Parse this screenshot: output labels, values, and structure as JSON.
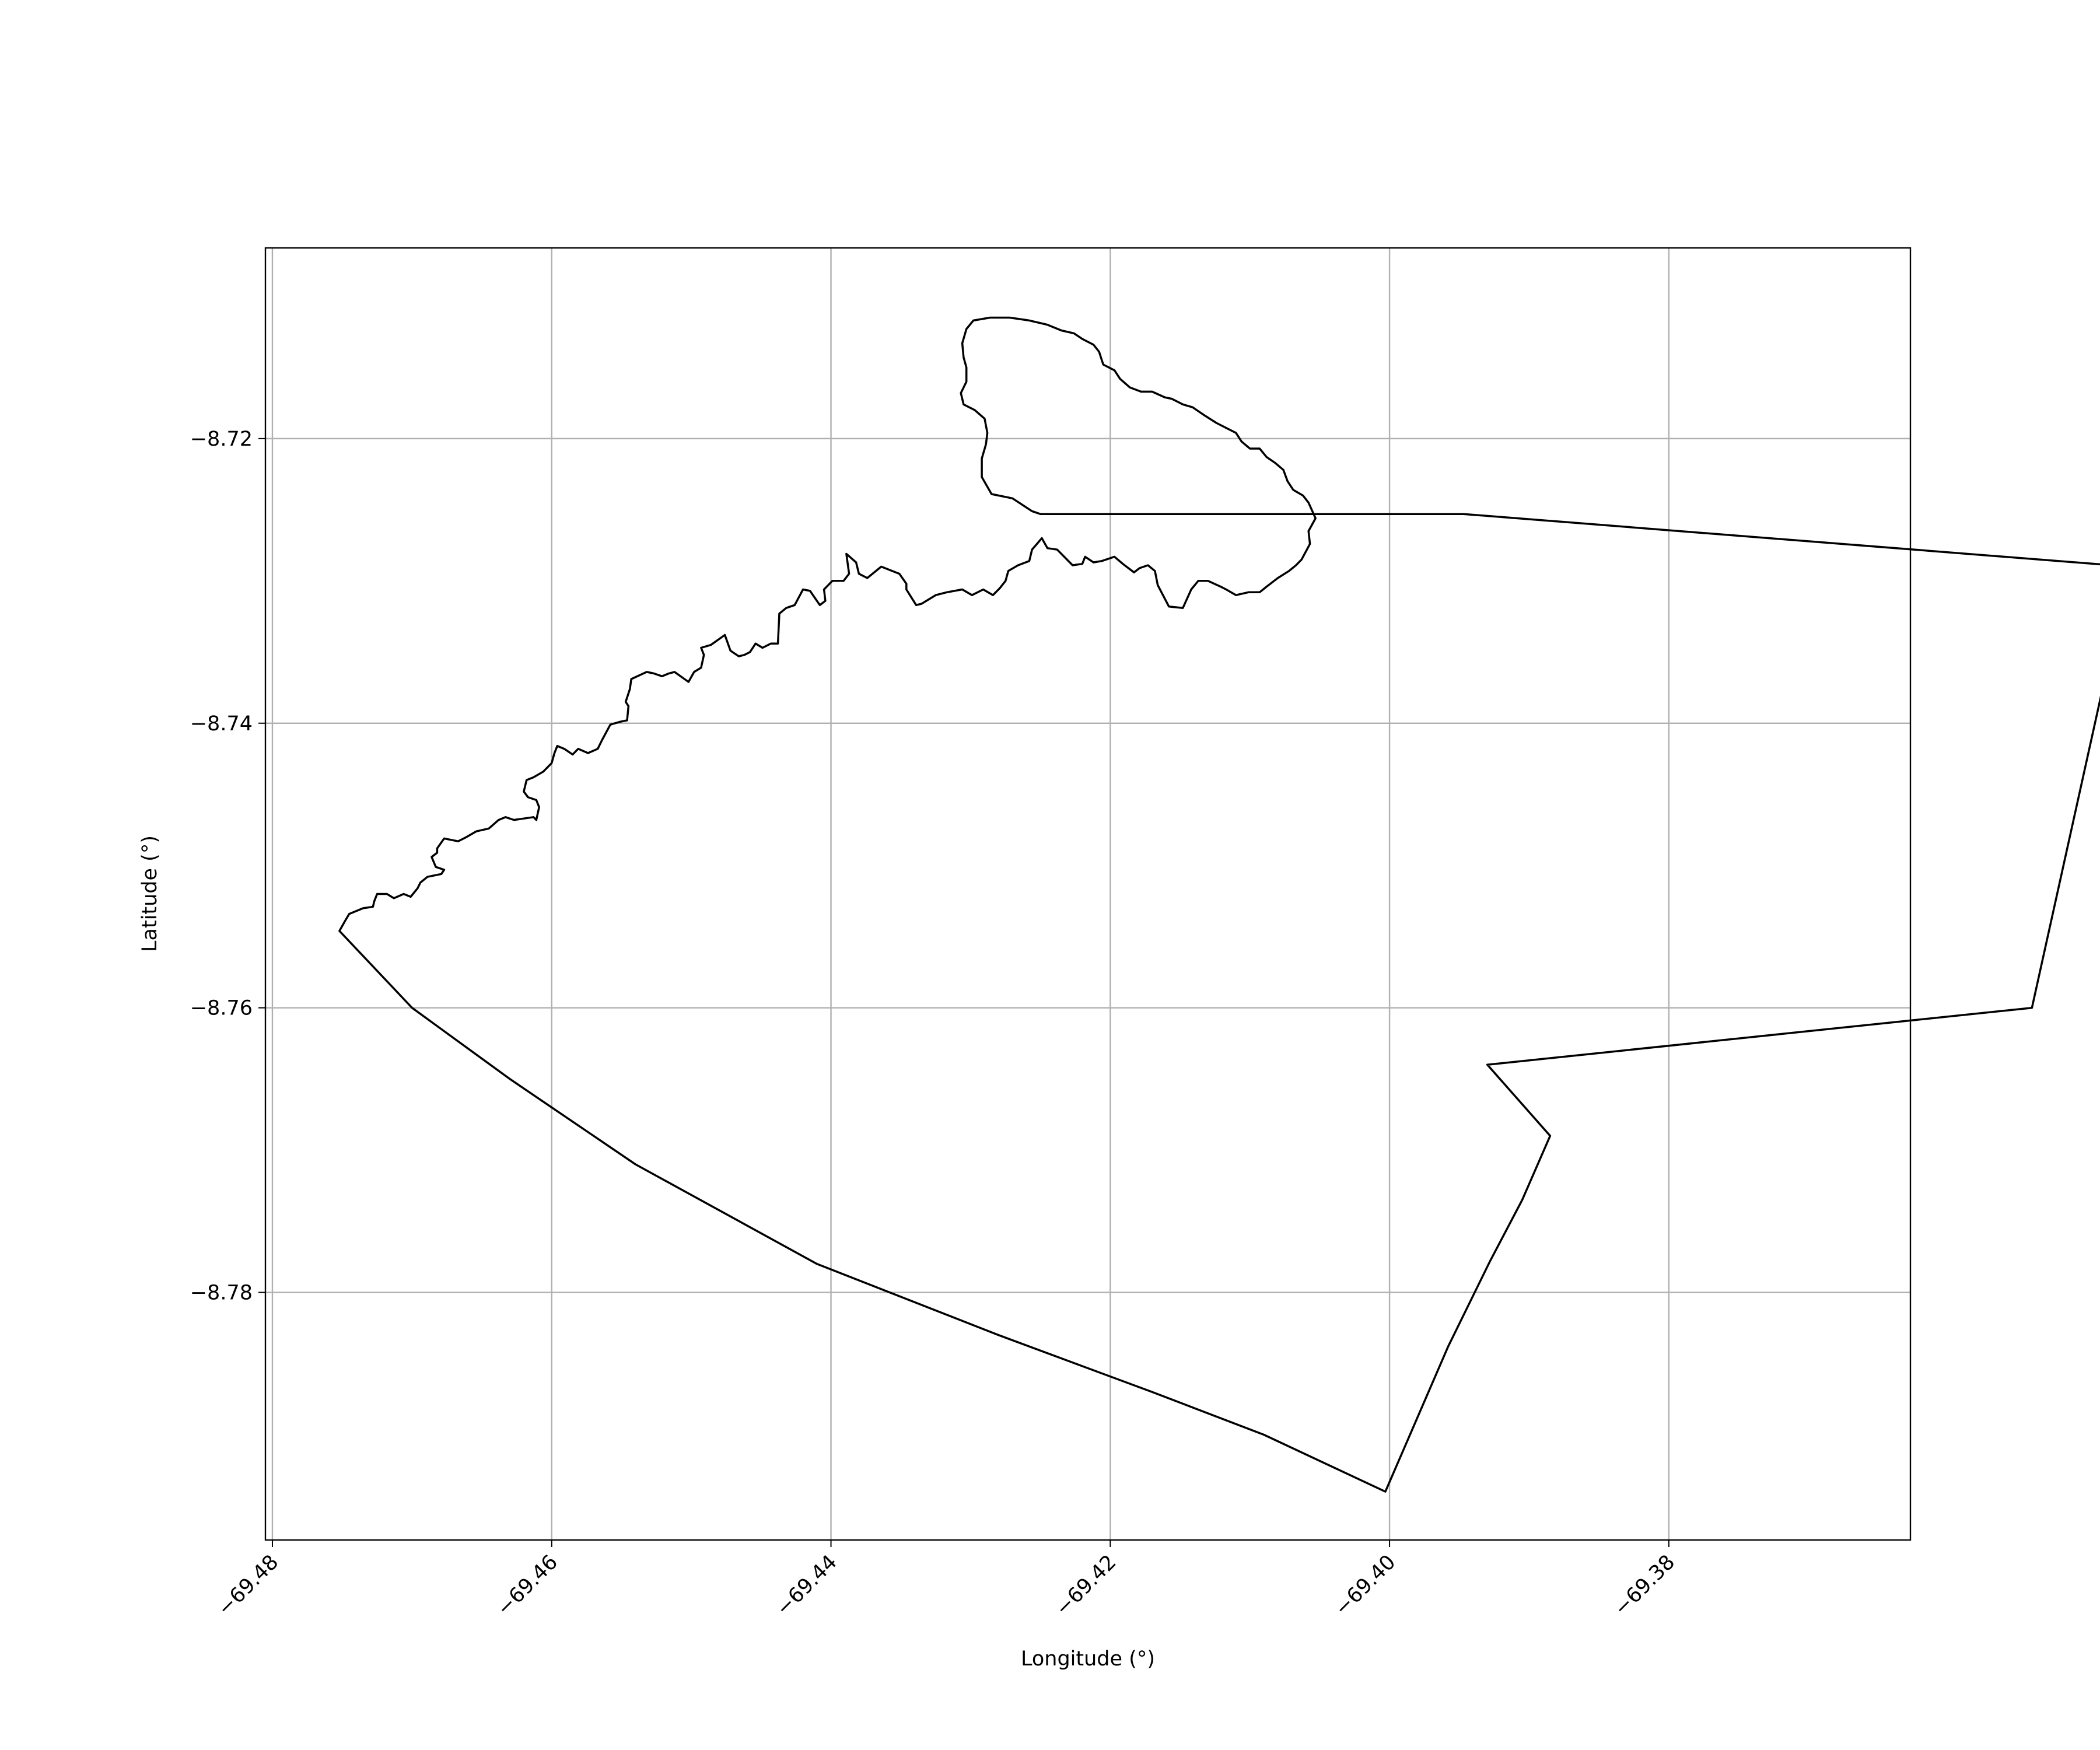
{
  "chart_data": {
    "type": "map",
    "xlabel": "Longitude (°)",
    "ylabel": "Latitude (°)",
    "xlim": [
      -69.4805,
      -69.3627
    ],
    "ylim": [
      -8.7974,
      -8.7066
    ],
    "xticks": [
      {
        "value": -69.48,
        "label": "−69.48"
      },
      {
        "value": -69.46,
        "label": "−69.46"
      },
      {
        "value": -69.44,
        "label": "−69.44"
      },
      {
        "value": -69.42,
        "label": "−69.42"
      },
      {
        "value": -69.4,
        "label": "−69.40"
      },
      {
        "value": -69.38,
        "label": "−69.38"
      }
    ],
    "yticks": [
      {
        "value": -8.72,
        "label": "−8.72"
      },
      {
        "value": -8.74,
        "label": "−8.74"
      },
      {
        "value": -8.76,
        "label": "−8.76"
      },
      {
        "value": -8.78,
        "label": "−8.78"
      }
    ],
    "grid": true,
    "series": [
      {
        "geometry": "polygon-outline",
        "color": "#000000",
        "points": [
          [
            -69.4752,
            -8.7546
          ],
          [
            -69.4748,
            -8.7539
          ],
          [
            -69.4745,
            -8.7534
          ],
          [
            -69.4735,
            -8.753
          ],
          [
            -69.4728,
            -8.7529
          ],
          [
            -69.4727,
            -8.7525
          ],
          [
            -69.4725,
            -8.752
          ],
          [
            -69.4718,
            -8.752
          ],
          [
            -69.4713,
            -8.7523
          ],
          [
            -69.4706,
            -8.752
          ],
          [
            -69.4701,
            -8.7522
          ],
          [
            -69.4696,
            -8.7516
          ],
          [
            -69.4694,
            -8.7512
          ],
          [
            -69.4689,
            -8.7508
          ],
          [
            -69.4679,
            -8.7506
          ],
          [
            -69.4677,
            -8.7503
          ],
          [
            -69.4683,
            -8.7501
          ],
          [
            -69.4686,
            -8.7494
          ],
          [
            -69.4682,
            -8.7491
          ],
          [
            -69.4682,
            -8.7488
          ],
          [
            -69.4677,
            -8.7481
          ],
          [
            -69.4672,
            -8.7482
          ],
          [
            -69.4667,
            -8.7483
          ],
          [
            -69.4661,
            -8.748
          ],
          [
            -69.4654,
            -8.7476
          ],
          [
            -69.4645,
            -8.7474
          ],
          [
            -69.4638,
            -8.7468
          ],
          [
            -69.4633,
            -8.7466
          ],
          [
            -69.4627,
            -8.7468
          ],
          [
            -69.462,
            -8.7467
          ],
          [
            -69.4613,
            -8.7466
          ],
          [
            -69.4611,
            -8.7468
          ],
          [
            -69.4609,
            -8.7459
          ],
          [
            -69.4611,
            -8.7454
          ],
          [
            -69.4617,
            -8.7452
          ],
          [
            -69.462,
            -8.7448
          ],
          [
            -69.4618,
            -8.744
          ],
          [
            -69.4613,
            -8.7438
          ],
          [
            -69.4606,
            -8.7434
          ],
          [
            -69.46,
            -8.7428
          ],
          [
            -69.4598,
            -8.7421
          ],
          [
            -69.4596,
            -8.7416
          ],
          [
            -69.4591,
            -8.7418
          ],
          [
            -69.4585,
            -8.7422
          ],
          [
            -69.4581,
            -8.7418
          ],
          [
            -69.4574,
            -8.7421
          ],
          [
            -69.4567,
            -8.7418
          ],
          [
            -69.4564,
            -8.7412
          ],
          [
            -69.4558,
            -8.7401
          ],
          [
            -69.4551,
            -8.7399
          ],
          [
            -69.4546,
            -8.7398
          ],
          [
            -69.4545,
            -8.7388
          ],
          [
            -69.4547,
            -8.7385
          ],
          [
            -69.4544,
            -8.7376
          ],
          [
            -69.4543,
            -8.7369
          ],
          [
            -69.4532,
            -8.7364
          ],
          [
            -69.4527,
            -8.7365
          ],
          [
            -69.4521,
            -8.7367
          ],
          [
            -69.4516,
            -8.7365
          ],
          [
            -69.4512,
            -8.7364
          ],
          [
            -69.4502,
            -8.7371
          ],
          [
            -69.4498,
            -8.7364
          ],
          [
            -69.4493,
            -8.7361
          ],
          [
            -69.4491,
            -8.7352
          ],
          [
            -69.4493,
            -8.7347
          ],
          [
            -69.4486,
            -8.7345
          ],
          [
            -69.4476,
            -8.7338
          ],
          [
            -69.4472,
            -8.7349
          ],
          [
            -69.4466,
            -8.7353
          ],
          [
            -69.4462,
            -8.7352
          ],
          [
            -69.4458,
            -8.735
          ],
          [
            -69.4454,
            -8.7344
          ],
          [
            -69.4449,
            -8.7347
          ],
          [
            -69.4443,
            -8.7344
          ],
          [
            -69.4438,
            -8.7344
          ],
          [
            -69.4437,
            -8.7323
          ],
          [
            -69.4432,
            -8.7319
          ],
          [
            -69.4426,
            -8.7317
          ],
          [
            -69.442,
            -8.7306
          ],
          [
            -69.4415,
            -8.7307
          ],
          [
            -69.4408,
            -8.7317
          ],
          [
            -69.4404,
            -8.7314
          ],
          [
            -69.4405,
            -8.7306
          ],
          [
            -69.4399,
            -8.73
          ],
          [
            -69.4391,
            -8.73
          ],
          [
            -69.4387,
            -8.7295
          ],
          [
            -69.4389,
            -8.7281
          ],
          [
            -69.4382,
            -8.7287
          ],
          [
            -69.438,
            -8.7295
          ],
          [
            -69.4374,
            -8.7298
          ],
          [
            -69.4364,
            -8.729
          ],
          [
            -69.4351,
            -8.7295
          ],
          [
            -69.4346,
            -8.7302
          ],
          [
            -69.4346,
            -8.7306
          ],
          [
            -69.4339,
            -8.7317
          ],
          [
            -69.4335,
            -8.7316
          ],
          [
            -69.4325,
            -8.731
          ],
          [
            -69.4317,
            -8.7308
          ],
          [
            -69.4306,
            -8.7306
          ],
          [
            -69.4299,
            -8.731
          ],
          [
            -69.4291,
            -8.7306
          ],
          [
            -69.4284,
            -8.731
          ],
          [
            -69.4279,
            -8.7305
          ],
          [
            -69.4275,
            -8.73
          ],
          [
            -69.4273,
            -8.7293
          ],
          [
            -69.4266,
            -8.7289
          ],
          [
            -69.4258,
            -8.7286
          ],
          [
            -69.4256,
            -8.7278
          ],
          [
            -69.4249,
            -8.727
          ],
          [
            -69.4245,
            -8.7277
          ],
          [
            -69.4238,
            -8.7278
          ],
          [
            -69.4233,
            -8.7283
          ],
          [
            -69.4227,
            -8.7289
          ],
          [
            -69.422,
            -8.7288
          ],
          [
            -69.4218,
            -8.7283
          ],
          [
            -69.4212,
            -8.7287
          ],
          [
            -69.4206,
            -8.7286
          ],
          [
            -69.4197,
            -8.7283
          ],
          [
            -69.4191,
            -8.7288
          ],
          [
            -69.4183,
            -8.7294
          ],
          [
            -69.4179,
            -8.7291
          ],
          [
            -69.4173,
            -8.7289
          ],
          [
            -69.4168,
            -8.7293
          ],
          [
            -69.4166,
            -8.7303
          ],
          [
            -69.4158,
            -8.7318
          ],
          [
            -69.4148,
            -8.7319
          ],
          [
            -69.4142,
            -8.7306
          ],
          [
            -69.4137,
            -8.73
          ],
          [
            -69.413,
            -8.73
          ],
          [
            -69.4121,
            -8.7304
          ],
          [
            -69.4117,
            -8.7306
          ],
          [
            -69.411,
            -8.731
          ],
          [
            -69.4101,
            -8.7308
          ],
          [
            -69.4093,
            -8.7308
          ],
          [
            -69.4088,
            -8.7304
          ],
          [
            -69.408,
            -8.7298
          ],
          [
            -69.4072,
            -8.7293
          ],
          [
            -69.4067,
            -8.7289
          ],
          [
            -69.4063,
            -8.7285
          ],
          [
            -69.4057,
            -8.7274
          ],
          [
            -69.4058,
            -8.7265
          ],
          [
            -69.4053,
            -8.7256
          ],
          [
            -69.4058,
            -8.7245
          ],
          [
            -69.4062,
            -8.724
          ],
          [
            -69.4069,
            -8.7236
          ],
          [
            -69.4073,
            -8.723
          ],
          [
            -69.4076,
            -8.7222
          ],
          [
            -69.4082,
            -8.7217
          ],
          [
            -69.4088,
            -8.7213
          ],
          [
            -69.4093,
            -8.7207
          ],
          [
            -69.41,
            -8.7207
          ],
          [
            -69.4106,
            -8.7202
          ],
          [
            -69.411,
            -8.7196
          ],
          [
            -69.4116,
            -8.7193
          ],
          [
            -69.4124,
            -8.7189
          ],
          [
            -69.4132,
            -8.7184
          ],
          [
            -69.4141,
            -8.7178
          ],
          [
            -69.4148,
            -8.7176
          ],
          [
            -69.4156,
            -8.7172
          ],
          [
            -69.4161,
            -8.7171
          ],
          [
            -69.417,
            -8.7167
          ],
          [
            -69.4178,
            -8.7167
          ],
          [
            -69.4186,
            -8.7164
          ],
          [
            -69.4193,
            -8.7158
          ],
          [
            -69.4197,
            -8.7152
          ],
          [
            -69.4205,
            -8.7148
          ],
          [
            -69.4208,
            -8.7139
          ],
          [
            -69.4212,
            -8.7134
          ],
          [
            -69.422,
            -8.713
          ],
          [
            -69.4226,
            -8.7126
          ],
          [
            -69.4235,
            -8.7124
          ],
          [
            -69.4245,
            -8.712
          ],
          [
            -69.4258,
            -8.7117
          ],
          [
            -69.4272,
            -8.7115
          ],
          [
            -69.4286,
            -8.7115
          ],
          [
            -69.4298,
            -8.7117
          ],
          [
            -69.4303,
            -8.7123
          ],
          [
            -69.4306,
            -8.7133
          ],
          [
            -69.4305,
            -8.7143
          ],
          [
            -69.4303,
            -8.715
          ],
          [
            -69.4303,
            -8.716
          ],
          [
            -69.4307,
            -8.7168
          ],
          [
            -69.4305,
            -8.7176
          ],
          [
            -69.4297,
            -8.718
          ],
          [
            -69.429,
            -8.7186
          ],
          [
            -69.4288,
            -8.7196
          ],
          [
            -69.4289,
            -8.7204
          ],
          [
            -69.4292,
            -8.7214
          ],
          [
            -69.4292,
            -8.7227
          ],
          [
            -69.4285,
            -8.7239
          ],
          [
            -69.427,
            -8.7242
          ],
          [
            -69.4256,
            -8.7251
          ],
          [
            -69.425,
            -8.7253
          ],
          [
            -69.3947,
            -8.7253
          ],
          [
            -69.347,
            -8.729
          ],
          [
            -69.354,
            -8.76
          ],
          [
            -69.393,
            -8.764
          ],
          [
            -69.3885,
            -8.769
          ],
          [
            -69.3905,
            -8.7735
          ],
          [
            -69.3928,
            -8.7778
          ],
          [
            -69.3958,
            -8.7838
          ],
          [
            -69.4003,
            -8.794
          ],
          [
            -69.409,
            -8.79
          ],
          [
            -69.417,
            -8.787
          ],
          [
            -69.428,
            -8.783
          ],
          [
            -69.441,
            -8.778
          ],
          [
            -69.454,
            -8.771
          ],
          [
            -69.463,
            -8.765
          ],
          [
            -69.47,
            -8.76
          ],
          [
            -69.4752,
            -8.7546
          ]
        ]
      }
    ]
  }
}
